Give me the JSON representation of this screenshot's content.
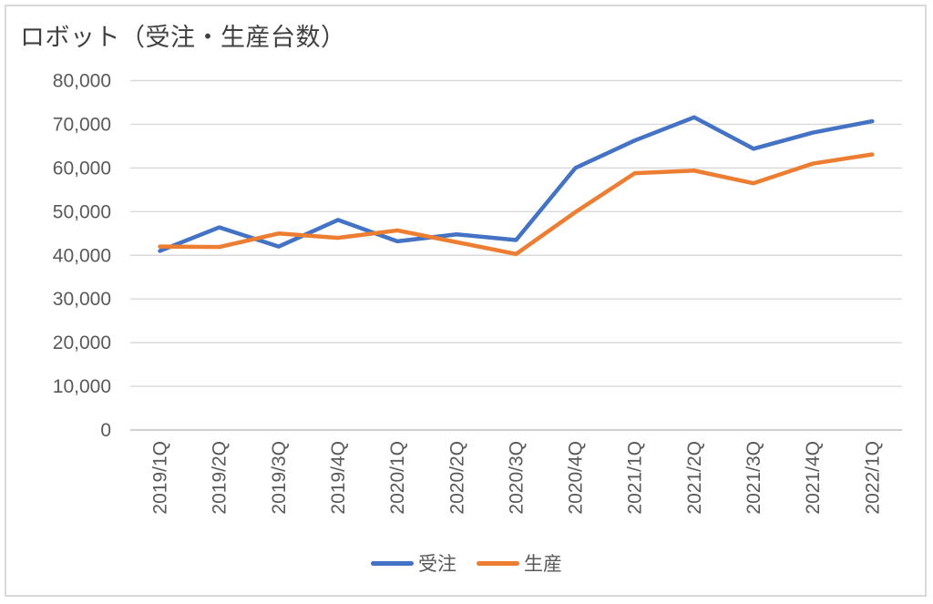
{
  "chart": {
    "border_color": "#D9D9D9",
    "grid_color": "#D9D9D9",
    "axis_color": "#BFBFBF",
    "tick_label_color": "#595959",
    "title_color": "#404040"
  },
  "chart_data": {
    "type": "line",
    "title": "ロボット（受注・生産台数）",
    "xlabel": "",
    "ylabel": "",
    "ylim": [
      0,
      80000
    ],
    "grid": true,
    "legend_position": "bottom",
    "categories": [
      "2019/1Q",
      "2019/2Q",
      "2019/3Q",
      "2019/4Q",
      "2020/1Q",
      "2020/2Q",
      "2020/3Q",
      "2020/4Q",
      "2021/1Q",
      "2021/2Q",
      "2021/3Q",
      "2021/4Q",
      "2022/1Q"
    ],
    "series": [
      {
        "key": "orders",
        "name": "受注",
        "color": "#4472C4",
        "values": [
          41000,
          46400,
          42000,
          48100,
          43200,
          44800,
          43500,
          60000,
          66300,
          71600,
          64400,
          68100,
          70700
        ]
      },
      {
        "key": "production",
        "name": "生産",
        "color": "#ED7D31",
        "values": [
          42000,
          41900,
          45000,
          44000,
          45700,
          43000,
          40300,
          49900,
          58800,
          59400,
          56500,
          61000,
          63100
        ]
      }
    ],
    "y_ticks": [
      {
        "value": 0,
        "label": "0"
      },
      {
        "value": 10000,
        "label": "10,000"
      },
      {
        "value": 20000,
        "label": "20,000"
      },
      {
        "value": 30000,
        "label": "30,000"
      },
      {
        "value": 40000,
        "label": "40,000"
      },
      {
        "value": 50000,
        "label": "50,000"
      },
      {
        "value": 60000,
        "label": "60,000"
      },
      {
        "value": 70000,
        "label": "70,000"
      },
      {
        "value": 80000,
        "label": "80,000"
      }
    ]
  }
}
